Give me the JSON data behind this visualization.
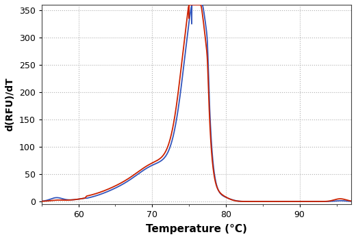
{
  "title": "",
  "xlabel": "Temperature (°C)",
  "ylabel": "d(RFU)/dT",
  "xlim": [
    55,
    97
  ],
  "ylim": [
    -5,
    360
  ],
  "yticks": [
    0,
    50,
    100,
    150,
    200,
    250,
    300,
    350
  ],
  "xticks": [
    60,
    70,
    80,
    90
  ],
  "grid_color": "#b0b0b0",
  "background_color": "#ffffff",
  "line_red": "#cc2200",
  "line_blue": "#3355bb",
  "line_width": 1.3
}
